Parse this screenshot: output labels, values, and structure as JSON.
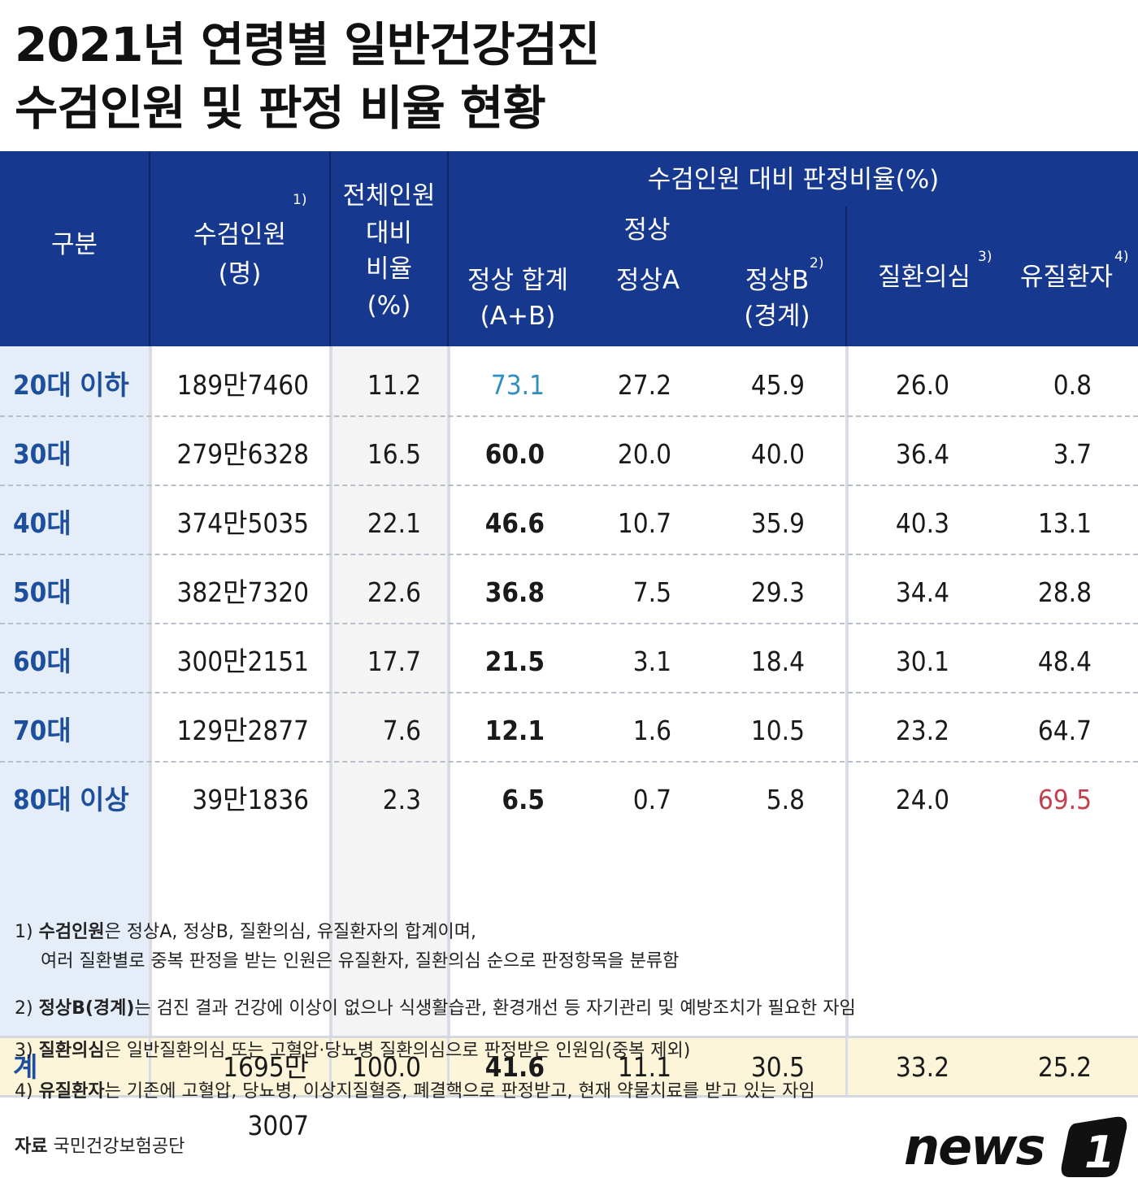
{
  "title": {
    "line1": "2021년 연령별 일반건강검진",
    "line2": "수검인원 및 판정 비율 현황"
  },
  "header": {
    "category": "구분",
    "examinees": "수검인원",
    "examinees_unit": "(명)",
    "examinees_note": "1)",
    "share_l1": "전체인원",
    "share_l2": "대비",
    "share_l3": "비율",
    "share_l4": "(%)",
    "group": "수검인원 대비 판정비율(%)",
    "normal": "정상",
    "normal_total_l1": "정상 합계",
    "normal_total_l2": "(A+B)",
    "normal_a": "정상A",
    "normal_b_l1": "정상B",
    "normal_b_l2": "(경계)",
    "normal_b_note": "2)",
    "suspect": "질환의심",
    "suspect_note": "3)",
    "patient": "유질환자",
    "patient_note": "4)"
  },
  "chart_data": {
    "type": "table",
    "title": "2021년 연령별 일반건강검진 수검인원 및 판정 비율 현황",
    "columns": [
      "구분",
      "수검인원(명)",
      "전체인원 대비 비율(%)",
      "정상 합계(A+B)",
      "정상A",
      "정상B(경계)",
      "질환의심",
      "유질환자"
    ],
    "rows": [
      [
        "20대 이하",
        "189만7460",
        "11.2",
        "73.1",
        "27.2",
        "45.9",
        "26.0",
        "0.8"
      ],
      [
        "30대",
        "279만6328",
        "16.5",
        "60.0",
        "20.0",
        "40.0",
        "36.4",
        "3.7"
      ],
      [
        "40대",
        "374만5035",
        "22.1",
        "46.6",
        "10.7",
        "35.9",
        "40.3",
        "13.1"
      ],
      [
        "50대",
        "382만7320",
        "22.6",
        "36.8",
        "7.5",
        "29.3",
        "34.4",
        "28.8"
      ],
      [
        "60대",
        "300만2151",
        "17.7",
        "21.5",
        "3.1",
        "18.4",
        "30.1",
        "48.4"
      ],
      [
        "70대",
        "129만2877",
        "7.6",
        "12.1",
        "1.6",
        "10.5",
        "23.2",
        "64.7"
      ],
      [
        "80대 이상",
        "39만1836",
        "2.3",
        "6.5",
        "0.7",
        "5.8",
        "24.0",
        "69.5"
      ]
    ],
    "total": [
      "계",
      "1695만3007",
      "100.0",
      "41.6",
      "11.1",
      "30.5",
      "33.2",
      "25.2"
    ],
    "highlight": {
      "max_normal": "73.1",
      "max_patient": "69.5"
    }
  },
  "colors": {
    "header_bg": "#16388f",
    "age_text": "#1d4f9c",
    "highlight_blue": "#2f8fc0",
    "highlight_red": "#c1414f",
    "total_bg": "#fdf5d9"
  },
  "notes": [
    {
      "num": "1)",
      "bold": "수검인원",
      "text": "은 정상A, 정상B, 질환의심, 유질환자의 합계이며,",
      "cont": "여러 질환별로 중복 판정을 받는 인원은 유질환자, 질환의심 순으로 판정항목을 분류함"
    },
    {
      "num": "2)",
      "bold": "정상B(경계)",
      "text": "는 검진 결과 건강에 이상이 없으나 식생활습관, 환경개선 등 자기관리 및 예방조치가 필요한 자임"
    },
    {
      "num": "3)",
      "bold": "질환의심",
      "text": "은 일반질환의심 또는 고혈압·당뇨병 질환의심으로 판정받은 인원임(중복 제외)"
    },
    {
      "num": "4)",
      "bold": "유질환자",
      "text": "는 기존에 고혈압, 당뇨병, 이상지질혈증, 폐결핵으로 판정받고, 현재 약물치료를 받고 있는 자임"
    }
  ],
  "source": {
    "label": "자료",
    "text": "국민건강보험공단"
  },
  "logo": {
    "text": "news",
    "mark": "1"
  }
}
